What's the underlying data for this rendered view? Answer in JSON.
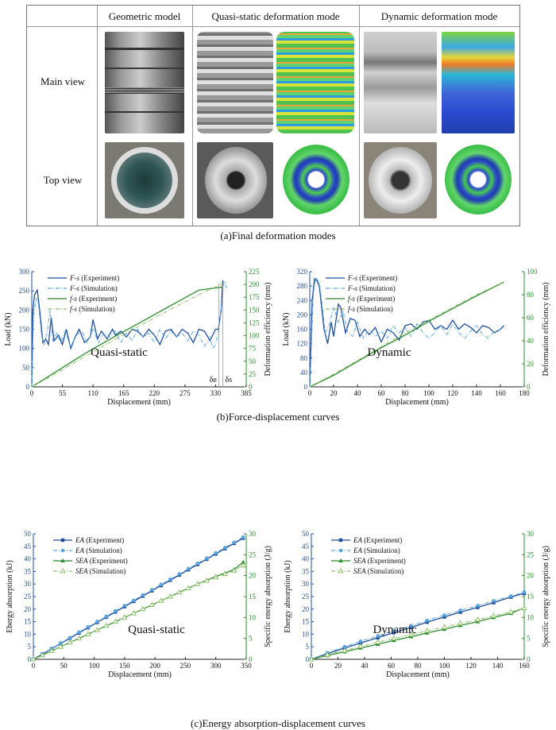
{
  "table": {
    "headers": [
      "Geometric model",
      "Quasi-static deformation mode",
      "Dynamic deformation mode"
    ],
    "rows": [
      "Main view",
      "Top view"
    ]
  },
  "captions": {
    "a": "(a)Final deformation modes",
    "b": "(b)Force-displacement curves",
    "c": "(c)Energy absorption-displacement curves"
  },
  "colors": {
    "blue": "#1f4e9c",
    "lightblue": "#5ba6de",
    "green": "#2e8b2e",
    "lightgreen": "#8cc06a"
  },
  "chart_data": [
    {
      "type": "line",
      "annotation": "Quasi-static",
      "xlabel": "Displacement (mm)",
      "ylabel": "Load (kN)",
      "y2label": "Deformation efficiency (mm)",
      "xlim": [
        0,
        385
      ],
      "ylim": [
        0,
        300
      ],
      "y2lim": [
        0,
        225
      ],
      "xticks": [
        0,
        55,
        110,
        165,
        220,
        275,
        330,
        385
      ],
      "yticks": [
        0,
        50,
        100,
        150,
        200,
        250,
        300
      ],
      "y2ticks": [
        0,
        25,
        50,
        75,
        100,
        125,
        150,
        175,
        200,
        225
      ],
      "markers": [
        "δe",
        "δs"
      ],
      "legend_position": "top-left",
      "series": [
        {
          "name": "F-s (Experiment)",
          "axis": "left",
          "style": "solid",
          "color": "#1f4e9c",
          "x": [
            0,
            2,
            5,
            10,
            15,
            20,
            25,
            30,
            35,
            40,
            48,
            55,
            62,
            70,
            78,
            85,
            95,
            105,
            110,
            118,
            125,
            135,
            145,
            150,
            160,
            170,
            180,
            190,
            200,
            210,
            220,
            230,
            240,
            250,
            260,
            270,
            280,
            290,
            300,
            310,
            320,
            330,
            335,
            340,
            343
          ],
          "y": [
            0,
            200,
            240,
            252,
            190,
            115,
            125,
            110,
            180,
            120,
            135,
            110,
            150,
            100,
            130,
            150,
            115,
            130,
            175,
            125,
            145,
            125,
            150,
            135,
            145,
            130,
            150,
            145,
            130,
            150,
            135,
            110,
            145,
            150,
            130,
            150,
            140,
            115,
            150,
            145,
            120,
            150,
            150,
            200,
            278
          ]
        },
        {
          "name": "F-s (Simulation)",
          "axis": "left",
          "style": "dashdot",
          "color": "#5ba6de",
          "x": [
            0,
            3,
            8,
            12,
            18,
            22,
            28,
            33,
            38,
            45,
            52,
            60,
            70,
            80,
            90,
            100,
            110,
            120,
            130,
            140,
            150,
            160,
            170,
            180,
            190,
            200,
            210,
            220,
            230,
            240,
            250,
            260,
            270,
            280,
            290,
            300,
            310,
            320,
            325,
            330,
            336,
            340,
            345,
            350
          ],
          "y": [
            0,
            180,
            230,
            215,
            130,
            110,
            145,
            200,
            120,
            140,
            115,
            145,
            105,
            135,
            145,
            115,
            150,
            115,
            140,
            130,
            145,
            115,
            140,
            120,
            150,
            130,
            140,
            115,
            150,
            125,
            145,
            130,
            140,
            120,
            145,
            135,
            105,
            130,
            100,
            110,
            150,
            200,
            275,
            255
          ]
        },
        {
          "name": "f-s (Experiment)",
          "axis": "right",
          "style": "solid",
          "color": "#2e8b2e",
          "x": [
            0,
            50,
            100,
            150,
            200,
            250,
            300,
            343
          ],
          "y": [
            0,
            34,
            68,
            99,
            129,
            159,
            189,
            195
          ]
        },
        {
          "name": "f-s (Simulation)",
          "axis": "right",
          "style": "dashdot",
          "color": "#8cc06a",
          "x": [
            0,
            50,
            100,
            150,
            200,
            250,
            300,
            350
          ],
          "y": [
            0,
            30,
            62,
            93,
            123,
            152,
            180,
            205
          ]
        }
      ]
    },
    {
      "type": "line",
      "annotation": "Dynamic",
      "xlabel": "Displacement (mm)",
      "ylabel": "Load (kN)",
      "y2label": "Deformation efficiency (mm)",
      "xlim": [
        0,
        180
      ],
      "ylim": [
        0,
        320
      ],
      "y2lim": [
        0,
        100
      ],
      "xticks": [
        0,
        20,
        40,
        60,
        80,
        100,
        120,
        140,
        160,
        180
      ],
      "yticks": [
        0,
        40,
        80,
        120,
        160,
        200,
        240,
        280,
        320
      ],
      "y2ticks": [
        0,
        20,
        40,
        60,
        80,
        100
      ],
      "legend_position": "top-left",
      "series": [
        {
          "name": "F-s (Experiment)",
          "axis": "left",
          "style": "solid",
          "color": "#1f4e9c",
          "x": [
            0,
            2,
            4,
            6,
            8,
            10,
            12,
            15,
            18,
            20,
            24,
            26,
            30,
            34,
            38,
            42,
            46,
            50,
            55,
            60,
            65,
            70,
            75,
            80,
            85,
            90,
            95,
            100,
            105,
            110,
            115,
            120,
            125,
            130,
            135,
            140,
            145,
            150,
            155,
            160,
            163
          ],
          "y": [
            0,
            240,
            300,
            295,
            280,
            220,
            160,
            120,
            180,
            140,
            230,
            220,
            150,
            190,
            185,
            140,
            160,
            145,
            165,
            125,
            160,
            150,
            130,
            170,
            175,
            160,
            180,
            185,
            160,
            170,
            160,
            185,
            160,
            175,
            165,
            150,
            170,
            165,
            150,
            160,
            170
          ]
        },
        {
          "name": "F-s (Simulation)",
          "axis": "left",
          "style": "dashdot",
          "color": "#5ba6de",
          "x": [
            0,
            3,
            5,
            8,
            10,
            13,
            16,
            20,
            24,
            28,
            32,
            36,
            40,
            45,
            50,
            55,
            60,
            65,
            70,
            75,
            80,
            85,
            90,
            95,
            100,
            105,
            110,
            115,
            120,
            125,
            130,
            135,
            140,
            145,
            150,
            155,
            160
          ],
          "y": [
            0,
            260,
            305,
            290,
            240,
            150,
            170,
            220,
            180,
            210,
            150,
            140,
            180,
            135,
            160,
            140,
            155,
            135,
            170,
            150,
            165,
            140,
            175,
            150,
            135,
            150,
            170,
            145,
            175,
            150,
            135,
            155,
            170,
            145,
            135,
            155,
            160
          ]
        },
        {
          "name": "f-s (Experiment)",
          "axis": "right",
          "style": "solid",
          "color": "#2e8b2e",
          "x": [
            0,
            20,
            40,
            60,
            80,
            100,
            120,
            140,
            163
          ],
          "y": [
            0,
            10,
            22,
            34,
            45,
            57,
            68,
            79,
            91
          ]
        },
        {
          "name": "f-s (Simulation)",
          "axis": "right",
          "style": "dashdot",
          "color": "#8cc06a",
          "x": [
            0,
            20,
            40,
            60,
            80,
            100,
            120,
            140,
            163
          ],
          "y": [
            0,
            11,
            23,
            35,
            47,
            58,
            69,
            80,
            91
          ]
        }
      ]
    },
    {
      "type": "line",
      "annotation": "Quasi-static",
      "xlabel": "Displacement (mm)",
      "ylabel": "Ebergy absorption (kJ)",
      "y2label": "Specific energy absorption (J/g)",
      "xlim": [
        0,
        350
      ],
      "ylim": [
        0,
        50
      ],
      "y2lim": [
        0,
        30
      ],
      "xticks": [
        0,
        50,
        100,
        150,
        200,
        250,
        300,
        350
      ],
      "yticks": [
        0,
        5,
        10,
        15,
        20,
        25,
        30,
        35,
        40,
        45,
        50
      ],
      "y2ticks": [
        0,
        5,
        10,
        15,
        20,
        25,
        30
      ],
      "legend_position": "top-left",
      "series": [
        {
          "name": "EA (Experiment)",
          "axis": "left",
          "style": "solid",
          "marker": "square",
          "color": "#1f4e9c",
          "x": [
            0,
            15,
            30,
            45,
            60,
            75,
            90,
            105,
            120,
            135,
            150,
            165,
            180,
            195,
            210,
            225,
            240,
            255,
            270,
            285,
            300,
            315,
            330,
            345
          ],
          "y": [
            0,
            2.1,
            4.2,
            6.3,
            8.4,
            10.5,
            12.6,
            14.7,
            16.8,
            18.9,
            21,
            23.1,
            25.2,
            27.3,
            29.4,
            31.5,
            33.6,
            35.7,
            37.8,
            39.9,
            42,
            44.1,
            46.2,
            48.3
          ]
        },
        {
          "name": "EA (Simulation)",
          "axis": "left",
          "style": "dashdot",
          "marker": "circle",
          "color": "#5ba6de",
          "x": [
            0,
            15,
            30,
            45,
            60,
            75,
            90,
            105,
            120,
            135,
            150,
            165,
            180,
            195,
            210,
            225,
            240,
            255,
            270,
            285,
            300,
            315,
            330,
            345
          ],
          "y": [
            0,
            2.2,
            4.3,
            6.5,
            8.6,
            10.8,
            12.9,
            15,
            17.1,
            19.3,
            21.4,
            23.5,
            25.6,
            27.7,
            29.8,
            31.9,
            34,
            36.1,
            38.2,
            40.3,
            42.4,
            44.5,
            46.6,
            48.7
          ]
        },
        {
          "name": "SEA (Experiment)",
          "axis": "right",
          "style": "solid",
          "marker": "triangle",
          "color": "#2e8b2e",
          "x": [
            0,
            15,
            30,
            45,
            60,
            75,
            90,
            105,
            120,
            135,
            150,
            165,
            180,
            195,
            210,
            225,
            240,
            255,
            270,
            285,
            300,
            315,
            330,
            345
          ],
          "y": [
            0,
            1,
            2,
            3,
            4,
            5,
            6,
            7,
            8,
            9,
            10,
            11,
            12,
            13,
            14,
            15,
            16,
            17,
            18,
            18.9,
            19.8,
            20.6,
            21.5,
            23.2
          ]
        },
        {
          "name": "SEA (Simulation)",
          "axis": "right",
          "style": "dashdot",
          "marker": "triangle-open",
          "color": "#8cc06a",
          "x": [
            0,
            15,
            30,
            45,
            60,
            75,
            90,
            105,
            120,
            135,
            150,
            165,
            180,
            195,
            210,
            225,
            240,
            255,
            270,
            285,
            300,
            315,
            330,
            345
          ],
          "y": [
            0,
            1,
            2,
            3,
            4,
            5,
            6,
            7,
            8,
            9,
            10,
            11,
            12,
            13,
            14,
            15,
            16,
            17,
            18,
            18.8,
            19.6,
            20.4,
            21.2,
            22.4
          ]
        }
      ]
    },
    {
      "type": "line",
      "annotation": "Dynamic",
      "xlabel": "Displacement (mm)",
      "ylabel": "Ebergy absorption (kJ)",
      "y2label": "Specific energy absorption (J/g)",
      "xlim": [
        0,
        160
      ],
      "ylim": [
        0,
        50
      ],
      "y2lim": [
        0,
        30
      ],
      "xticks": [
        0,
        20,
        40,
        60,
        80,
        100,
        120,
        140,
        160
      ],
      "yticks": [
        0,
        5,
        10,
        15,
        20,
        25,
        30,
        35,
        40,
        45,
        50
      ],
      "y2ticks": [
        0,
        5,
        10,
        15,
        20,
        25,
        30
      ],
      "legend_position": "top-left",
      "series": [
        {
          "name": "EA (Experiment)",
          "axis": "left",
          "style": "solid",
          "marker": "square",
          "color": "#1f4e9c",
          "x": [
            0,
            12,
            25,
            37,
            50,
            62,
            75,
            87,
            100,
            112,
            125,
            137,
            150,
            160
          ],
          "y": [
            0,
            2.2,
            4.5,
            6.5,
            8.6,
            10.6,
            12.7,
            14.8,
            16.9,
            18.8,
            20.7,
            22.6,
            24.8,
            26.3
          ]
        },
        {
          "name": "EA (Simulation)",
          "axis": "left",
          "style": "dashdot",
          "marker": "circle",
          "color": "#5ba6de",
          "x": [
            0,
            12,
            25,
            37,
            50,
            62,
            75,
            87,
            100,
            112,
            125,
            137,
            150,
            160
          ],
          "y": [
            0,
            2.6,
            5,
            7.2,
            9.3,
            11.4,
            13.4,
            15.5,
            17.6,
            19.5,
            21.4,
            23.3,
            25.2,
            26.8
          ]
        },
        {
          "name": "SEA (Experiment)",
          "axis": "right",
          "style": "solid",
          "marker": "triangle",
          "color": "#2e8b2e",
          "x": [
            0,
            12,
            25,
            37,
            50,
            62,
            75,
            87,
            100,
            112,
            125,
            137,
            150,
            160
          ],
          "y": [
            0,
            0.9,
            1.8,
            2.7,
            3.6,
            4.5,
            5.4,
            6.3,
            7.2,
            8.1,
            9.0,
            10,
            11,
            12.3
          ]
        },
        {
          "name": "SEA (Simulation)",
          "axis": "right",
          "style": "dashdot",
          "marker": "triangle-open",
          "color": "#8cc06a",
          "x": [
            0,
            12,
            25,
            37,
            50,
            62,
            75,
            87,
            100,
            112,
            125,
            137,
            150,
            160
          ],
          "y": [
            0,
            1.1,
            2.1,
            3.1,
            4.1,
            5.0,
            5.9,
            6.8,
            7.7,
            8.6,
            9.5,
            10.4,
            11.3,
            12.2
          ]
        }
      ]
    }
  ]
}
